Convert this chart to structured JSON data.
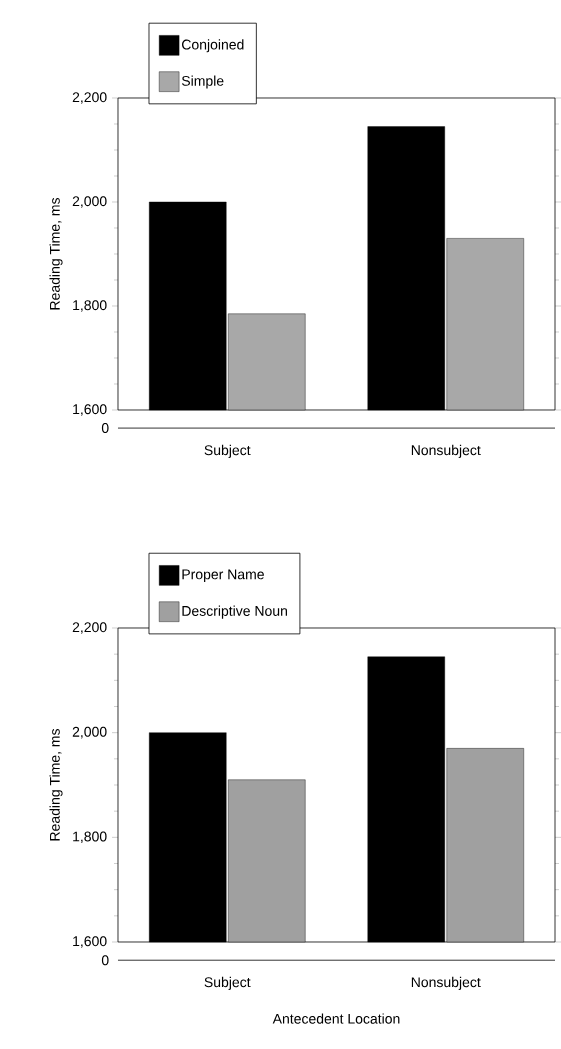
{
  "chart_data": [
    {
      "type": "bar",
      "categories": [
        "Subject",
        "Nonsubject"
      ],
      "ylabel": "Reading Time, ms",
      "series": [
        {
          "name": "Conjoined",
          "color": "#000000",
          "values": [
            2000,
            2145
          ]
        },
        {
          "name": "Simple",
          "color": "#a8a8a8",
          "values": [
            1785,
            1930
          ]
        }
      ],
      "ylim": [
        1600,
        2200
      ],
      "yticks": [
        {
          "value": 1600,
          "label": "1,600"
        },
        {
          "value": 1800,
          "label": "1,800"
        },
        {
          "value": 2000,
          "label": "2,000"
        },
        {
          "value": 2200,
          "label": "2,200"
        }
      ],
      "annotations": [
        "0"
      ],
      "legend": "top left"
    },
    {
      "type": "bar",
      "categories": [
        "Subject",
        "Nonsubject"
      ],
      "ylabel": "Reading Time, ms",
      "xlabel": "Antecedent Location",
      "series": [
        {
          "name": "Proper Name",
          "color": "#000000",
          "values": [
            2000,
            2145
          ]
        },
        {
          "name": "Descriptive Noun",
          "color": "#a0a0a0",
          "values": [
            1910,
            1970
          ]
        }
      ],
      "ylim": [
        1600,
        2200
      ],
      "yticks": [
        {
          "value": 1600,
          "label": "1,600"
        },
        {
          "value": 1800,
          "label": "1,800"
        },
        {
          "value": 2000,
          "label": "2,000"
        },
        {
          "value": 2200,
          "label": "2,200"
        }
      ],
      "annotations": [
        "0"
      ],
      "legend": "top left"
    }
  ]
}
